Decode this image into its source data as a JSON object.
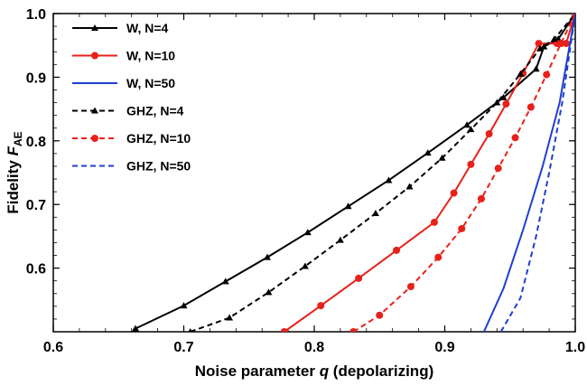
{
  "chart_data": {
    "type": "line",
    "xlabel": "Noise parameter q (depolarizing)",
    "xlabel_parts": {
      "main": "Noise parameter ",
      "italic": "q",
      "tail": " (depolarizing)"
    },
    "ylabel_parts": {
      "main": "Fidelity ",
      "italic": "F",
      "sub": "AE"
    },
    "xlim": [
      0.6,
      1.0
    ],
    "ylim": [
      0.5,
      1.0
    ],
    "xticks": [
      "0.6",
      "0.7",
      "0.8",
      "0.9",
      "1.0"
    ],
    "yticks": [
      "0.6",
      "0.7",
      "0.8",
      "0.9",
      "1.0"
    ],
    "legend_position": "top-left",
    "grid": false,
    "series": [
      {
        "name": "W, N=4",
        "color": "#000000",
        "dash": "solid",
        "marker": "triangle",
        "x": [
          0.663,
          0.7,
          0.732,
          0.764,
          0.795,
          0.826,
          0.857,
          0.887,
          0.917,
          0.945,
          0.97,
          0.976,
          0.987,
          1.0
        ],
        "y": [
          0.505,
          0.541,
          0.579,
          0.617,
          0.656,
          0.697,
          0.738,
          0.781,
          0.825,
          0.868,
          0.913,
          0.948,
          0.96,
          1.0
        ]
      },
      {
        "name": "W, N=10",
        "color": "#e8201a",
        "dash": "solid",
        "marker": "circle",
        "x": [
          0.777,
          0.805,
          0.834,
          0.863,
          0.892,
          0.907,
          0.92,
          0.934,
          0.947,
          0.96,
          0.972,
          0.986,
          0.993,
          1.0
        ],
        "y": [
          0.5,
          0.541,
          0.584,
          0.628,
          0.672,
          0.718,
          0.763,
          0.811,
          0.858,
          0.906,
          0.953,
          0.953,
          0.953,
          1.0
        ]
      },
      {
        "name": "W, N=50",
        "color": "#1f3fd1",
        "dash": "solid",
        "marker": "none",
        "x": [
          0.93,
          0.945,
          0.96,
          0.975,
          0.988,
          1.0
        ],
        "y": [
          0.5,
          0.568,
          0.66,
          0.76,
          0.86,
          1.0
        ]
      },
      {
        "name": "GHZ, N=4",
        "color": "#000000",
        "dash": "dashed",
        "marker": "triangle",
        "x": [
          0.705,
          0.735,
          0.765,
          0.793,
          0.82,
          0.847,
          0.873,
          0.898,
          0.92,
          0.94,
          0.958,
          0.973,
          0.984,
          1.0
        ],
        "y": [
          0.5,
          0.522,
          0.562,
          0.603,
          0.644,
          0.686,
          0.728,
          0.773,
          0.818,
          0.86,
          0.905,
          0.945,
          0.96,
          1.0
        ]
      },
      {
        "name": "GHZ, N=10",
        "color": "#e8201a",
        "dash": "dashed",
        "marker": "circle",
        "x": [
          0.83,
          0.85,
          0.874,
          0.895,
          0.913,
          0.928,
          0.941,
          0.954,
          0.966,
          0.978,
          0.989,
          1.0
        ],
        "y": [
          0.5,
          0.526,
          0.571,
          0.617,
          0.662,
          0.709,
          0.757,
          0.805,
          0.853,
          0.904,
          0.953,
          1.0
        ]
      },
      {
        "name": "GHZ, N=50",
        "color": "#1f3fd1",
        "dash": "dashed",
        "marker": "none",
        "x": [
          0.943,
          0.958,
          0.97,
          0.98,
          0.99,
          1.0
        ],
        "y": [
          0.5,
          0.553,
          0.65,
          0.75,
          0.86,
          1.0
        ]
      }
    ]
  }
}
